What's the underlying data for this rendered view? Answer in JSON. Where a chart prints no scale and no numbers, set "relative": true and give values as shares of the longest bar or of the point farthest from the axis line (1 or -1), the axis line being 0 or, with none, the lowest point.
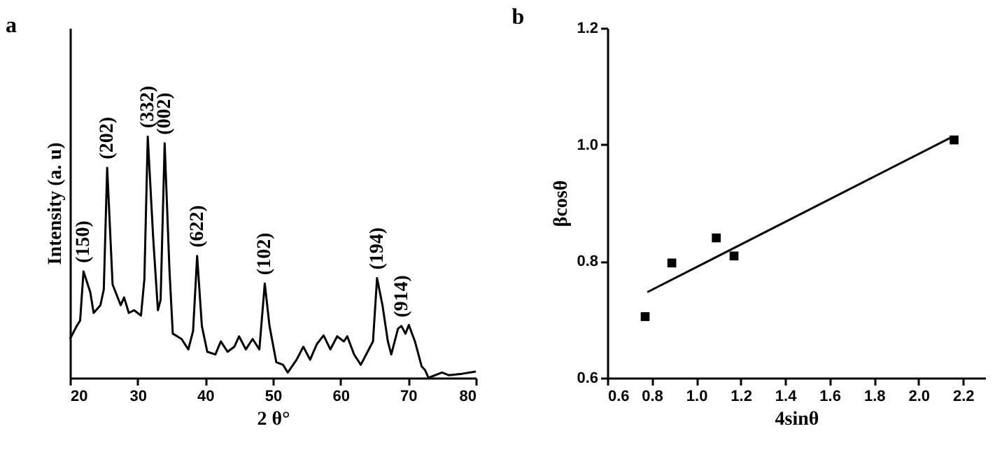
{
  "chart_data": [
    {
      "type": "line",
      "title": "a",
      "xlabel": "2 θ°",
      "ylabel": "Intensity (a. u)",
      "relative": true,
      "tick_labels": "x",
      "xlim": [
        20,
        80
      ],
      "xticks": [
        20,
        30,
        40,
        50,
        60,
        70,
        80
      ],
      "x": [
        20,
        21,
        21.5,
        22,
        23,
        23.5,
        24.5,
        25,
        25.5,
        26.3,
        27.5,
        28,
        28.7,
        29.5,
        30.5,
        31,
        31.5,
        32.3,
        33,
        33.4,
        34,
        34.7,
        35.2,
        36.5,
        37.5,
        38.2,
        38.8,
        39.5,
        40.3,
        41.5,
        42.3,
        43.3,
        44.3,
        45,
        46,
        47,
        48,
        48.8,
        49.5,
        50.5,
        51.5,
        52.2,
        53.5,
        54.5,
        55.5,
        56.5,
        57.5,
        58.5,
        59.5,
        60.5,
        61,
        62,
        63,
        64,
        64.8,
        65.4,
        66.2,
        67,
        67.5,
        68.5,
        69,
        69.6,
        70.1,
        71,
        72,
        72.5,
        73,
        75,
        76,
        78,
        80
      ],
      "series": [
        {
          "color": "#000000",
          "values": [
            0.161,
            0.215,
            0.237,
            0.441,
            0.355,
            0.269,
            0.301,
            0.366,
            0.871,
            0.387,
            0.301,
            0.333,
            0.269,
            0.28,
            0.258,
            0.409,
            1,
            0.581,
            0.28,
            0.323,
            0.972,
            0.452,
            0.183,
            0.161,
            0.118,
            0.194,
            0.505,
            0.215,
            0.108,
            0.097,
            0.151,
            0.108,
            0.129,
            0.172,
            0.118,
            0.161,
            0.118,
            0.391,
            0.215,
            0.065,
            0.054,
            0.022,
            0.075,
            0.129,
            0.075,
            0.14,
            0.176,
            0.118,
            0.172,
            0.151,
            0.172,
            0.097,
            0.054,
            0.108,
            0.151,
            0.413,
            0.301,
            0.151,
            0.097,
            0.204,
            0.215,
            0.183,
            0.219,
            0.151,
            0.047,
            0.032,
            0,
            0.022,
            0.011,
            0.017,
            0.026
          ]
        }
      ],
      "annotations": [
        {
          "text": "(150)",
          "x": 22,
          "y": 0.441
        },
        {
          "text": "(202)",
          "x": 25.5,
          "y": 0.871
        },
        {
          "text": "(332)",
          "x": 31.5,
          "y": 1
        },
        {
          "text": "(002)",
          "x": 34,
          "y": 0.972
        },
        {
          "text": "(622)",
          "x": 38.8,
          "y": 0.505
        },
        {
          "text": "(102)",
          "x": 48.8,
          "y": 0.391
        },
        {
          "text": "(194)",
          "x": 65.4,
          "y": 0.413
        },
        {
          "text": "(914)",
          "x": 69,
          "y": 0.215
        }
      ],
      "grid": false
    },
    {
      "type": "scatter",
      "title": "b",
      "xlabel": "4sinθ",
      "ylabel": "βcosθ",
      "xlim": [
        0.6,
        2.3
      ],
      "ylim": [
        0.6,
        1.2
      ],
      "xticks": [
        0.6,
        0.8,
        {
          "value": 1,
          "label": "1.0"
        },
        1.2,
        1.4,
        1.6,
        1.8,
        {
          "value": 2,
          "label": "2.0"
        },
        2.2
      ],
      "yticks": [
        0.6,
        0.8,
        {
          "value": 1,
          "label": "1.0"
        },
        1.2
      ],
      "series": [
        {
          "color": "#000000",
          "marker": "square",
          "x": [
            0.77,
            0.89,
            1.09,
            1.17,
            2.16
          ],
          "values": [
            0.705,
            0.797,
            0.84,
            0.809,
            1.008
          ]
        },
        {
          "type": "line",
          "color": "#000000",
          "marker": "none",
          "x": [
            0.78,
            2.15
          ],
          "values": [
            0.747,
            1.013
          ]
        }
      ],
      "grid": false
    }
  ]
}
